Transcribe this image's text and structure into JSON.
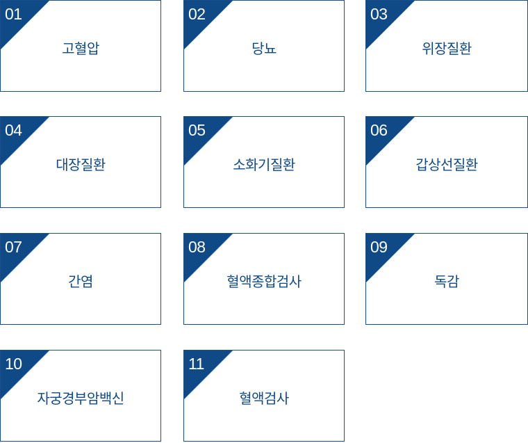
{
  "colors": {
    "accent": "#0f4a86",
    "border": "#1a4e8a",
    "number_text": "#ffffff"
  },
  "items": [
    {
      "number": "01",
      "label": "고혈압"
    },
    {
      "number": "02",
      "label": "당뇨"
    },
    {
      "number": "03",
      "label": "위장질환"
    },
    {
      "number": "04",
      "label": "대장질환"
    },
    {
      "number": "05",
      "label": "소화기질환"
    },
    {
      "number": "06",
      "label": "갑상선질환"
    },
    {
      "number": "07",
      "label": "간염"
    },
    {
      "number": "08",
      "label": "혈액종합검사"
    },
    {
      "number": "09",
      "label": "독감"
    },
    {
      "number": "10",
      "label": "자궁경부암백신"
    },
    {
      "number": "11",
      "label": "혈액검사"
    }
  ]
}
